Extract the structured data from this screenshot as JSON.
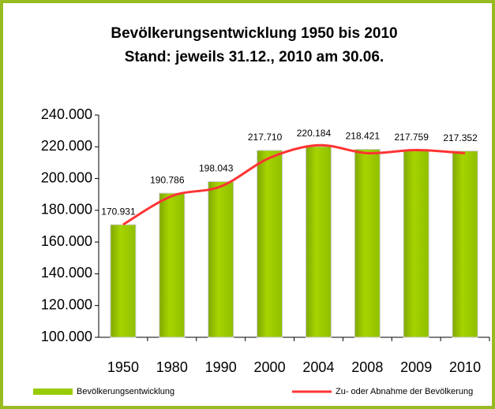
{
  "chart_data": {
    "type": "bar",
    "title": "Bevölkerungsentwicklung 1950 bis 2010",
    "subtitle": "Stand: jeweils 31.12., 2010 am 30.06.",
    "categories": [
      "1950",
      "1980",
      "1990",
      "2000",
      "2004",
      "2008",
      "2009",
      "2010"
    ],
    "series": [
      {
        "name": "Bevölkerungsentwicklung",
        "color": "#99cc00",
        "type": "bar",
        "values": [
          170931,
          190786,
          198043,
          217710,
          220184,
          218421,
          217759,
          217352
        ],
        "value_labels": [
          "170.931",
          "190.786",
          "198.043",
          "217.710",
          "220.184",
          "218.421",
          "217.759",
          "217.352"
        ]
      },
      {
        "name": "Zu- oder Abnahme der Bevölkerung",
        "color": "#ff3333",
        "type": "line",
        "values": [
          171000,
          189000,
          195000,
          213000,
          221000,
          216000,
          218000,
          216000
        ]
      }
    ],
    "ylim": [
      100000,
      240000
    ],
    "yticks": [
      {
        "value": 100000,
        "label": "100.000"
      },
      {
        "value": 120000,
        "label": "120.000"
      },
      {
        "value": 140000,
        "label": "140.000"
      },
      {
        "value": 160000,
        "label": "160.000"
      },
      {
        "value": 180000,
        "label": "180.000"
      },
      {
        "value": 200000,
        "label": "200.000"
      },
      {
        "value": 220000,
        "label": "220.000"
      },
      {
        "value": 240000,
        "label": "240.000"
      }
    ],
    "grid": false
  }
}
